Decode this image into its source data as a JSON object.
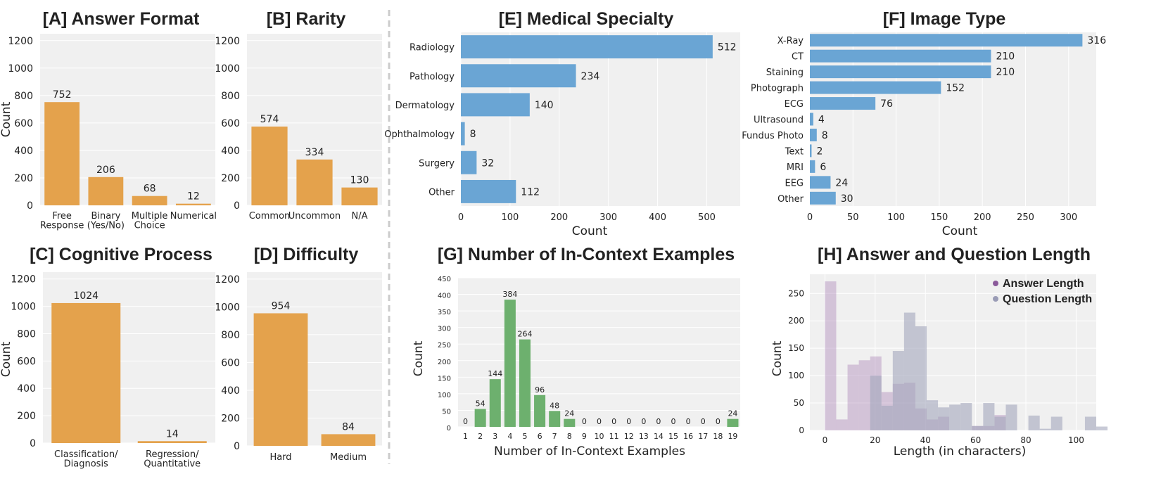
{
  "colors": {
    "orange": "#e4a24c",
    "blue": "#6aa5d4",
    "green": "#6db06e",
    "purple": "#a77fb3",
    "purple_light": "#d7b9dc",
    "gray": "#a4a6bd",
    "panel_bg": "#f0f0f0",
    "grid": "#ffffff",
    "divider": "#cccccc"
  },
  "chart_data": [
    {
      "id": "A",
      "type": "bar",
      "title": "[A] Answer Format",
      "ylabel": "Count",
      "xlabel": "",
      "categories": [
        "Free\nResponse",
        "Binary\n(Yes/No)",
        "Multiple\nChoice",
        "Numerical"
      ],
      "values": [
        752,
        206,
        68,
        12
      ],
      "value_labels": [
        "752",
        "206",
        "68",
        "12"
      ],
      "yticks": [
        0,
        200,
        400,
        600,
        800,
        1000,
        1200
      ],
      "ylim": [
        0,
        1250
      ]
    },
    {
      "id": "B",
      "type": "bar",
      "title": "[B] Rarity",
      "ylabel": "",
      "xlabel": "",
      "categories": [
        "Common",
        "Uncommon",
        "N/A"
      ],
      "values": [
        574,
        334,
        130
      ],
      "value_labels": [
        "574",
        "334",
        "130"
      ],
      "yticks": [
        0,
        200,
        400,
        600,
        800,
        1000,
        1200
      ],
      "ylim": [
        0,
        1250
      ]
    },
    {
      "id": "C",
      "type": "bar",
      "title": "[C] Cognitive Process",
      "ylabel": "Count",
      "xlabel": "",
      "categories": [
        "Classification/\nDiagnosis",
        "Regression/\nQuantitative"
      ],
      "values": [
        1024,
        14
      ],
      "value_labels": [
        "1024",
        "14"
      ],
      "yticks": [
        0,
        200,
        400,
        600,
        800,
        1000,
        1200
      ],
      "ylim": [
        0,
        1250
      ]
    },
    {
      "id": "D",
      "type": "bar",
      "title": "[D] Difficulty",
      "ylabel": "",
      "xlabel": "",
      "categories": [
        "Hard",
        "Medium"
      ],
      "values": [
        954,
        84
      ],
      "value_labels": [
        "954",
        "84"
      ],
      "yticks": [
        0,
        200,
        400,
        600,
        800,
        1000,
        1200
      ],
      "ylim": [
        0,
        1250
      ]
    },
    {
      "id": "E",
      "type": "barh",
      "title": "[E] Medical Specialty",
      "xlabel": "Count",
      "ylabel": "",
      "categories": [
        "Radiology",
        "Pathology",
        "Dermatology",
        "Ophthalmology",
        "Surgery",
        "Other"
      ],
      "values": [
        512,
        234,
        140,
        8,
        32,
        112
      ],
      "value_labels": [
        "512",
        "234",
        "140",
        "8",
        "32",
        "112"
      ],
      "xticks": [
        0,
        100,
        200,
        300,
        400,
        500
      ],
      "xlim": [
        0,
        568
      ]
    },
    {
      "id": "F",
      "type": "barh",
      "title": "[F] Image Type",
      "xlabel": "Count",
      "ylabel": "",
      "categories": [
        "X-Ray",
        "CT",
        "Staining",
        "Photograph",
        "ECG",
        "Ultrasound",
        "Fundus Photo",
        "Text",
        "MRI",
        "EEG",
        "Other"
      ],
      "values": [
        316,
        210,
        210,
        152,
        76,
        4,
        8,
        2,
        6,
        24,
        30
      ],
      "value_labels": [
        "316",
        "210",
        "210",
        "152",
        "76",
        "4",
        "8",
        "2",
        "6",
        "24",
        "30"
      ],
      "xticks": [
        0,
        50,
        100,
        150,
        200,
        250,
        300
      ],
      "xlim": [
        0,
        332
      ]
    },
    {
      "id": "G",
      "type": "bar",
      "title": "[G] Number of In-Context Examples",
      "xlabel": "Number of In-Context Examples",
      "ylabel": "Count",
      "categories": [
        "1",
        "2",
        "3",
        "4",
        "5",
        "6",
        "7",
        "8",
        "9",
        "10",
        "11",
        "12",
        "13",
        "14",
        "15",
        "16",
        "17",
        "18",
        "19"
      ],
      "values": [
        0,
        54,
        144,
        384,
        264,
        96,
        48,
        24,
        0,
        0,
        0,
        0,
        0,
        0,
        0,
        0,
        0,
        0,
        24
      ],
      "value_labels": [
        "0",
        "54",
        "144",
        "384",
        "264",
        "96",
        "48",
        "24",
        "0",
        "0",
        "0",
        "0",
        "0",
        "0",
        "0",
        "0",
        "0",
        "0",
        "24"
      ],
      "yticks": [
        0,
        50,
        100,
        150,
        200,
        250,
        300,
        350,
        400,
        450
      ],
      "ylim": [
        0,
        450
      ]
    },
    {
      "id": "H",
      "type": "histogram",
      "title": "[H] Answer and Question Length",
      "xlabel": "Length (in characters)",
      "ylabel": "Count",
      "xticks": [
        0,
        20,
        40,
        60,
        80,
        100
      ],
      "yticks": [
        0,
        50,
        100,
        150,
        200,
        250
      ],
      "xlim": [
        -6,
        108
      ],
      "ylim": [
        0,
        285
      ],
      "bin_width": 4.5,
      "legend": [
        "Answer Length",
        "Question Length"
      ],
      "legend_loc": "top-right",
      "series": [
        {
          "name": "Answer Length",
          "bins": [
            [
              0,
              272
            ],
            [
              4.5,
              20
            ],
            [
              9,
              120
            ],
            [
              13.5,
              128
            ],
            [
              18,
              135
            ],
            [
              22.5,
              70
            ],
            [
              27,
              85
            ],
            [
              31.5,
              87
            ],
            [
              36,
              40
            ],
            [
              40.5,
              20
            ],
            [
              45,
              25
            ],
            [
              58.5,
              8
            ],
            [
              63,
              8
            ],
            [
              67.5,
              28
            ]
          ]
        },
        {
          "name": "Question Length",
          "bins": [
            [
              18,
              100
            ],
            [
              22.5,
              45
            ],
            [
              27,
              145
            ],
            [
              31.5,
              215
            ],
            [
              36,
              190
            ],
            [
              40.5,
              55
            ],
            [
              45,
              42
            ],
            [
              49.5,
              47
            ],
            [
              54,
              50
            ],
            [
              58.5,
              8
            ],
            [
              63,
              50
            ],
            [
              67.5,
              25
            ],
            [
              72,
              47
            ],
            [
              81,
              27
            ],
            [
              85.5,
              3
            ],
            [
              90,
              25
            ],
            [
              103.5,
              25
            ],
            [
              108,
              7
            ]
          ]
        }
      ]
    }
  ]
}
